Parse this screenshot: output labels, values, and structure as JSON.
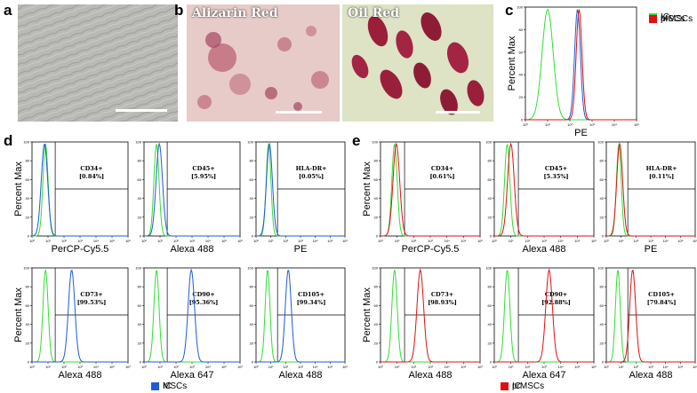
{
  "panel_labels": {
    "a": "a",
    "b": "b",
    "c": "c",
    "d": "d",
    "e": "e"
  },
  "stains": {
    "alizarin": "Alizarin Red",
    "oil": "Oil Red"
  },
  "colors": {
    "ic": "#33dd33",
    "mscs": "#1f5bd6",
    "prmscs": "#e01010"
  },
  "legend_c": [
    "IC",
    "MSCs",
    "prMSCs"
  ],
  "legend_d": [
    "IC",
    "MSCs"
  ],
  "legend_e": [
    "IC",
    "prMSCs"
  ],
  "ylabel": "Percent Max",
  "chart_data": [
    {
      "id": "c",
      "type": "line",
      "xlabel": "PE",
      "xlog": true,
      "xlim": [
        1,
        100000
      ],
      "ylim": [
        0,
        100
      ],
      "xticks": [
        "10⁰",
        "10¹",
        "10²",
        "10³",
        "10⁴",
        "10⁵"
      ],
      "yticks": [
        "0",
        "20",
        "40",
        "60",
        "80",
        "100"
      ],
      "series": [
        {
          "name": "IC",
          "color": "ic",
          "peak": 10,
          "width": 0.25
        },
        {
          "name": "MSCs",
          "color": "mscs",
          "peak": 220,
          "width": 0.13
        },
        {
          "name": "prMSCs",
          "color": "prmscs",
          "peak": 260,
          "width": 0.13
        }
      ]
    },
    {
      "id": "d1",
      "type": "line",
      "xlabel": "PerCP-Cy5.5",
      "gate": "CD34+",
      "pct": "[0.84%]",
      "series": [
        {
          "name": "IC",
          "color": "ic",
          "peak": 7
        },
        {
          "name": "MSCs",
          "color": "mscs",
          "peak": 6
        }
      ]
    },
    {
      "id": "d2",
      "type": "line",
      "xlabel": "Alexa 488",
      "gate": "CD45+",
      "pct": "[5.95%]",
      "series": [
        {
          "name": "IC",
          "color": "ic",
          "peak": 6
        },
        {
          "name": "MSCs",
          "color": "mscs",
          "peak": 9
        }
      ]
    },
    {
      "id": "d3",
      "type": "line",
      "xlabel": "PE",
      "gate": "HLA-DR+",
      "pct": "[0.05%]",
      "series": [
        {
          "name": "IC",
          "color": "ic",
          "peak": 7
        },
        {
          "name": "MSCs",
          "color": "mscs",
          "peak": 8
        }
      ]
    },
    {
      "id": "d4",
      "type": "line",
      "xlabel": "Alexa 488",
      "gate": "CD73+",
      "pct": "[99.53%]",
      "series": [
        {
          "name": "IC",
          "color": "ic",
          "peak": 7
        },
        {
          "name": "MSCs",
          "color": "mscs",
          "peak": 300
        }
      ]
    },
    {
      "id": "d5",
      "type": "line",
      "xlabel": "Alexa 647",
      "gate": "CD90+",
      "pct": "[95.36%]",
      "series": [
        {
          "name": "IC",
          "color": "ic",
          "peak": 6
        },
        {
          "name": "MSCs",
          "color": "mscs",
          "peak": 900
        }
      ]
    },
    {
      "id": "d6",
      "type": "line",
      "xlabel": "Alexa 488",
      "gate": "CD105+",
      "pct": "[99.34%]",
      "series": [
        {
          "name": "IC",
          "color": "ic",
          "peak": 6
        },
        {
          "name": "MSCs",
          "color": "mscs",
          "peak": 150
        }
      ]
    },
    {
      "id": "e1",
      "type": "line",
      "xlabel": "PerCP-Cy5.5",
      "gate": "CD34+",
      "pct": "[0.61%]",
      "series": [
        {
          "name": "IC",
          "color": "ic",
          "peak": 7
        },
        {
          "name": "prMSCs",
          "color": "prmscs",
          "peak": 9
        }
      ]
    },
    {
      "id": "e2",
      "type": "line",
      "xlabel": "Alexa 488",
      "gate": "CD45+",
      "pct": "[5.35%]",
      "series": [
        {
          "name": "IC",
          "color": "ic",
          "peak": 6
        },
        {
          "name": "prMSCs",
          "color": "prmscs",
          "peak": 10
        }
      ]
    },
    {
      "id": "e3",
      "type": "line",
      "xlabel": "PE",
      "gate": "HLA-DR+",
      "pct": "[0.11%]",
      "series": [
        {
          "name": "IC",
          "color": "ic",
          "peak": 7
        },
        {
          "name": "prMSCs",
          "color": "prmscs",
          "peak": 8
        }
      ]
    },
    {
      "id": "e4",
      "type": "line",
      "xlabel": "Alexa 488",
      "gate": "CD73+",
      "pct": "[98.93%]",
      "series": [
        {
          "name": "IC",
          "color": "ic",
          "peak": 7
        },
        {
          "name": "prMSCs",
          "color": "prmscs",
          "peak": 250
        }
      ]
    },
    {
      "id": "e5",
      "type": "line",
      "xlabel": "Alexa 647",
      "gate": "CD90+",
      "pct": "[92.88%]",
      "series": [
        {
          "name": "IC",
          "color": "ic",
          "peak": 6
        },
        {
          "name": "prMSCs",
          "color": "prmscs",
          "peak": 2000
        }
      ]
    },
    {
      "id": "e6",
      "type": "line",
      "xlabel": "Alexa 488",
      "gate": "CD105+",
      "pct": "[79.84%]",
      "series": [
        {
          "name": "IC",
          "color": "ic",
          "peak": 6
        },
        {
          "name": "prMSCs",
          "color": "prmscs",
          "peak": 60
        }
      ]
    }
  ],
  "facs_axis": {
    "xlim": [
      1,
      1000000
    ],
    "ylim": [
      0,
      100
    ],
    "xticks": [
      "10⁰",
      "10¹",
      "10²",
      "10³",
      "10⁴",
      "10⁵",
      "10⁶"
    ],
    "yticks": [
      "0",
      "20",
      "40",
      "60",
      "80",
      "100"
    ]
  }
}
